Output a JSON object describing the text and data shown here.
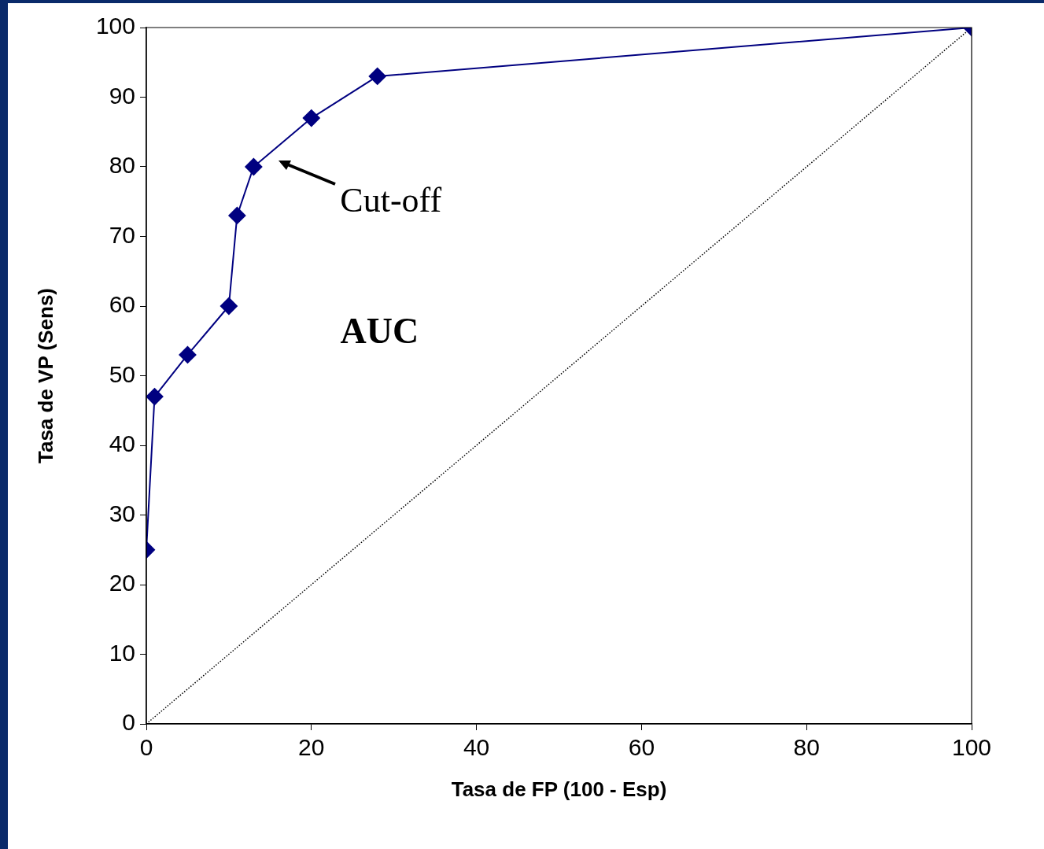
{
  "chart_data": {
    "type": "line",
    "xlabel": "Tasa de FP (100 - Esp)",
    "ylabel": "Tasa de VP (Sens)",
    "xlim": [
      0,
      100
    ],
    "xticks": [
      0,
      20,
      40,
      60,
      80,
      100
    ],
    "ylim": [
      0,
      100
    ],
    "yticks": [
      0,
      10,
      20,
      30,
      40,
      50,
      60,
      70,
      80,
      90,
      100
    ],
    "grid": false,
    "legend": false,
    "series": [
      {
        "color": "#000080",
        "marker": "diamond",
        "line_style": "solid",
        "x": [
          0,
          1,
          5,
          10,
          11,
          13,
          20,
          28,
          100
        ],
        "values": [
          25,
          47,
          53,
          60,
          73,
          80,
          87,
          93,
          100
        ]
      },
      {
        "color": "#000000",
        "marker": "none",
        "line_style": "dotted",
        "x": [
          0,
          100
        ],
        "values": [
          0,
          100
        ]
      }
    ],
    "annotations": [
      {
        "text": "Cut-off",
        "x": 13,
        "y": 80
      },
      "AUC"
    ]
  }
}
